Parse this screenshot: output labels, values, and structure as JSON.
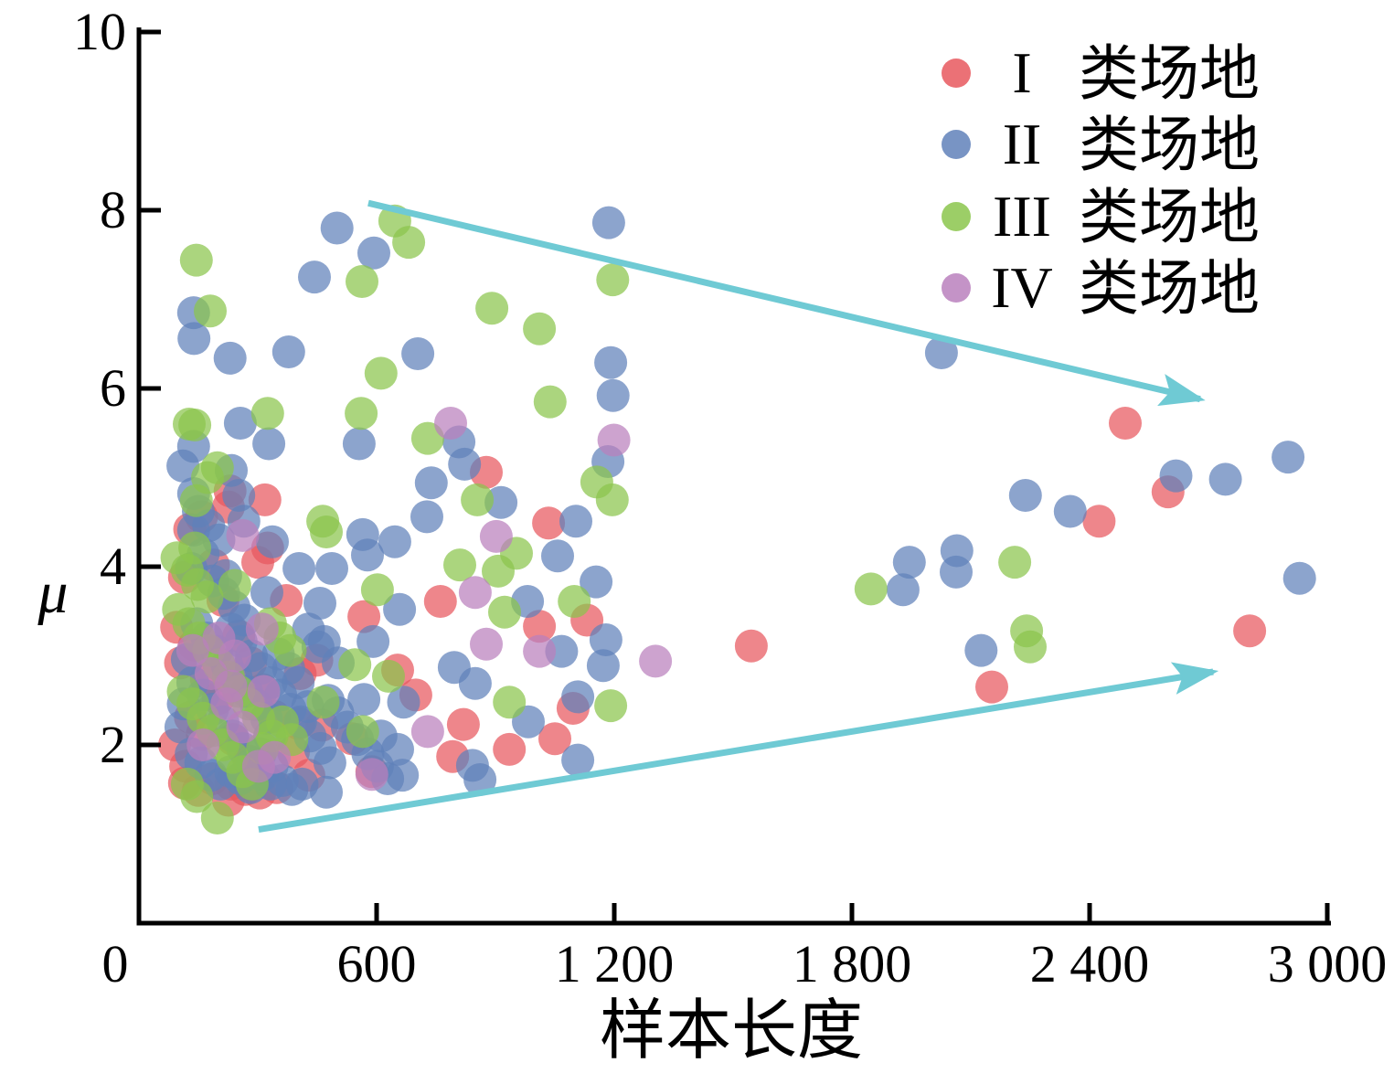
{
  "colors": {
    "red": "#e8585e",
    "blue": "#6081ba",
    "green": "#8bc54c",
    "pink": "#ba80bd",
    "arrow": "#6fcad4",
    "axis": "#000000"
  },
  "legend": {
    "items": [
      {
        "numeral": "I",
        "label": "类场地",
        "series": "series1"
      },
      {
        "numeral": "II",
        "label": "类场地",
        "series": "series2"
      },
      {
        "numeral": "III",
        "label": "类场地",
        "series": "series3"
      },
      {
        "numeral": "IV",
        "label": "类场地",
        "series": "series4"
      }
    ]
  },
  "chart_data": {
    "type": "scatter",
    "title": "",
    "xlabel": "样本长度",
    "ylabel": "μ",
    "xlim": [
      0,
      3000
    ],
    "ylim": [
      0,
      10
    ],
    "grid": false,
    "legend_position": "top-right",
    "x_tick_values": [
      0,
      600,
      1200,
      1800,
      2400,
      3000
    ],
    "x_tick_labels": [
      "0",
      "600",
      "1 200",
      "1 800",
      "2 400",
      "3 000"
    ],
    "y_tick_values": [
      2,
      4,
      6,
      8,
      10
    ],
    "y_tick_labels": [
      "2",
      "4",
      "6",
      "8",
      "10"
    ],
    "point_opacity": 0.72,
    "series": [
      {
        "id": "series1",
        "name": "I 类场地",
        "color_key": "red",
        "points": [
          [
            2490,
            5.61
          ],
          [
            2598,
            4.84
          ],
          [
            2424,
            4.51
          ],
          [
            2804,
            3.28
          ],
          [
            2153,
            2.65
          ],
          [
            1546,
            3.11
          ],
          [
            877,
            5.06
          ],
          [
            1034,
            4.49
          ],
          [
            761,
            3.61
          ],
          [
            1131,
            3.4
          ],
          [
            1011,
            3.33
          ],
          [
            1096,
            2.41
          ],
          [
            1050,
            2.07
          ],
          [
            935,
            1.95
          ],
          [
            819,
            2.23
          ],
          [
            792,
            1.87
          ],
          [
            653,
            2.84
          ],
          [
            449,
            2.95
          ],
          [
            407,
            2.8
          ],
          [
            403,
            2.24
          ],
          [
            538,
            2.07
          ],
          [
            429,
            1.66
          ],
          [
            699,
            2.56
          ],
          [
            588,
            1.7
          ],
          [
            372,
            3.62
          ],
          [
            568,
            3.44
          ],
          [
            318,
            4.75
          ],
          [
            300,
            4.05
          ],
          [
            325,
            4.21
          ],
          [
            230,
            4.85
          ],
          [
            226,
            4.67
          ],
          [
            115,
            3.88
          ],
          [
            115,
            1.57
          ],
          [
            226,
            1.38
          ],
          [
            95,
            3.32
          ],
          [
            140,
            3.12
          ],
          [
            105,
            2.92
          ],
          [
            170,
            2.74
          ],
          [
            200,
            2.52
          ],
          [
            130,
            2.31
          ],
          [
            160,
            2.12
          ],
          [
            90,
            2.0
          ],
          [
            118,
            1.76
          ],
          [
            185,
            1.62
          ],
          [
            232,
            1.56
          ],
          [
            268,
            1.5
          ],
          [
            305,
            1.46
          ],
          [
            348,
            1.52
          ],
          [
            150,
            1.49
          ],
          [
            128,
            4.42
          ],
          [
            158,
            4.56
          ],
          [
            188,
            4.02
          ],
          [
            212,
            3.62
          ],
          [
            252,
            3.22
          ],
          [
            282,
            2.92
          ],
          [
            312,
            2.62
          ],
          [
            342,
            2.32
          ],
          [
            390,
            1.92
          ],
          [
            462,
            2.22
          ],
          [
            238,
            2.06
          ],
          [
            278,
            1.82
          ]
        ]
      },
      {
        "id": "series2",
        "name": "II 类场地",
        "color_key": "blue",
        "points": [
          [
            2901,
            5.23
          ],
          [
            2618,
            5.02
          ],
          [
            2743,
            4.98
          ],
          [
            2238,
            4.8
          ],
          [
            2351,
            4.62
          ],
          [
            2930,
            3.87
          ],
          [
            2126,
            3.06
          ],
          [
            2026,
            6.4
          ],
          [
            1945,
            4.05
          ],
          [
            2065,
            4.18
          ],
          [
            2063,
            3.94
          ],
          [
            1929,
            3.74
          ],
          [
            1186,
            7.86
          ],
          [
            1191,
            6.29
          ],
          [
            1197,
            5.92
          ],
          [
            1184,
            5.18
          ],
          [
            1154,
            3.83
          ],
          [
            1172,
            2.89
          ],
          [
            1179,
            3.18
          ],
          [
            1103,
            4.51
          ],
          [
            1057,
            4.12
          ],
          [
            1108,
            2.54
          ],
          [
            1108,
            1.83
          ],
          [
            981,
            3.61
          ],
          [
            983,
            2.26
          ],
          [
            914,
            4.72
          ],
          [
            808,
            5.4
          ],
          [
            822,
            5.15
          ],
          [
            738,
            4.94
          ],
          [
            727,
            4.56
          ],
          [
            796,
            2.87
          ],
          [
            849,
            2.69
          ],
          [
            861,
            1.61
          ],
          [
            842,
            1.77
          ],
          [
            1067,
            3.05
          ],
          [
            500,
            7.8
          ],
          [
            443,
            7.25
          ],
          [
            593,
            7.52
          ],
          [
            138,
            6.85
          ],
          [
            139,
            6.56
          ],
          [
            230,
            6.34
          ],
          [
            378,
            6.41
          ],
          [
            704,
            6.39
          ],
          [
            256,
            5.61
          ],
          [
            328,
            5.38
          ],
          [
            138,
            5.35
          ],
          [
            556,
            5.38
          ],
          [
            646,
            4.28
          ],
          [
            577,
            4.13
          ],
          [
            565,
            4.36
          ],
          [
            658,
            3.52
          ],
          [
            487,
            3.98
          ],
          [
            404,
            3.98
          ],
          [
            457,
            3.59
          ],
          [
            111,
            5.13
          ],
          [
            233,
            5.08
          ],
          [
            252,
            4.8
          ],
          [
            138,
            4.82
          ],
          [
            138,
            4.41
          ],
          [
            265,
            4.51
          ],
          [
            337,
            4.28
          ],
          [
            323,
            3.71
          ],
          [
            219,
            3.9
          ],
          [
            591,
            3.16
          ],
          [
            468,
            3.16
          ],
          [
            503,
            2.92
          ],
          [
            568,
            2.51
          ],
          [
            426,
            2.43
          ],
          [
            330,
            2.1
          ],
          [
            611,
            2.1
          ],
          [
            653,
            1.95
          ],
          [
            668,
            2.48
          ],
          [
            665,
            1.66
          ],
          [
            473,
            1.47
          ],
          [
            150,
            4.62
          ],
          [
            176,
            4.46
          ],
          [
            202,
            4.3
          ],
          [
            162,
            4.14
          ],
          [
            132,
            3.98
          ],
          [
            186,
            3.84
          ],
          [
            214,
            3.7
          ],
          [
            240,
            3.55
          ],
          [
            266,
            3.4
          ],
          [
            146,
            3.36
          ],
          [
            172,
            3.2
          ],
          [
            196,
            3.05
          ],
          [
            222,
            2.9
          ],
          [
            246,
            2.75
          ],
          [
            272,
            2.6
          ],
          [
            296,
            2.45
          ],
          [
            322,
            2.3
          ],
          [
            122,
            2.96
          ],
          [
            136,
            2.7
          ],
          [
            112,
            2.46
          ],
          [
            162,
            2.56
          ],
          [
            186,
            2.4
          ],
          [
            212,
            2.26
          ],
          [
            236,
            2.1
          ],
          [
            262,
            1.96
          ],
          [
            286,
            1.8
          ],
          [
            312,
            1.66
          ],
          [
            336,
            1.76
          ],
          [
            362,
            1.6
          ],
          [
            386,
            1.5
          ],
          [
            412,
            1.56
          ],
          [
            132,
            1.9
          ],
          [
            106,
            2.2
          ],
          [
            156,
            1.8
          ],
          [
            182,
            1.66
          ],
          [
            206,
            1.56
          ],
          [
            232,
            1.7
          ],
          [
            256,
            1.62
          ],
          [
            282,
            1.52
          ],
          [
            306,
            1.9
          ],
          [
            332,
            1.56
          ],
          [
            232,
            3.3
          ],
          [
            258,
            3.16
          ],
          [
            284,
            3.0
          ],
          [
            308,
            2.86
          ],
          [
            334,
            2.7
          ],
          [
            358,
            2.56
          ],
          [
            382,
            2.4
          ],
          [
            408,
            2.26
          ],
          [
            432,
            2.1
          ],
          [
            458,
            1.96
          ],
          [
            482,
            1.8
          ],
          [
            352,
            3.02
          ],
          [
            378,
            2.86
          ],
          [
            402,
            2.7
          ],
          [
            428,
            3.3
          ],
          [
            452,
            3.1
          ],
          [
            478,
            2.5
          ],
          [
            502,
            2.36
          ],
          [
            526,
            2.2
          ],
          [
            552,
            2.06
          ],
          [
            578,
            1.9
          ],
          [
            602,
            1.76
          ],
          [
            628,
            1.62
          ]
        ]
      },
      {
        "id": "series3",
        "name": "III 类场地",
        "color_key": "green",
        "points": [
          [
            145,
            7.44
          ],
          [
            180,
            6.87
          ],
          [
            646,
            7.88
          ],
          [
            681,
            7.64
          ],
          [
            563,
            7.2
          ],
          [
            891,
            6.9
          ],
          [
            1011,
            6.67
          ],
          [
            611,
            6.17
          ],
          [
            561,
            5.72
          ],
          [
            1038,
            5.85
          ],
          [
            1196,
            7.22
          ],
          [
            127,
            5.6
          ],
          [
            141,
            5.59
          ],
          [
            325,
            5.72
          ],
          [
            1848,
            3.75
          ],
          [
            2211,
            4.05
          ],
          [
            2241,
            3.28
          ],
          [
            2250,
            3.1
          ],
          [
            729,
            5.44
          ],
          [
            854,
            4.75
          ],
          [
            953,
            4.15
          ],
          [
            907,
            3.95
          ],
          [
            810,
            4.02
          ],
          [
            923,
            3.49
          ],
          [
            1099,
            3.61
          ],
          [
            1156,
            4.95
          ],
          [
            1195,
            4.75
          ],
          [
            1191,
            2.44
          ],
          [
            935,
            2.48
          ],
          [
            545,
            2.9
          ],
          [
            630,
            2.77
          ],
          [
            465,
            2.48
          ],
          [
            565,
            2.15
          ],
          [
            198,
            1.18
          ],
          [
            602,
            3.74
          ],
          [
            464,
            4.51
          ],
          [
            473,
            4.39
          ],
          [
            242,
            3.79
          ],
          [
            198,
            5.11
          ],
          [
            173,
            5.0
          ],
          [
            145,
            4.74
          ],
          [
            141,
            4.21
          ],
          [
            100,
            3.52
          ],
          [
            126,
            3.36
          ],
          [
            152,
            3.2
          ],
          [
            176,
            3.06
          ],
          [
            202,
            2.9
          ],
          [
            226,
            2.76
          ],
          [
            252,
            2.6
          ],
          [
            276,
            2.46
          ],
          [
            302,
            2.3
          ],
          [
            112,
            2.6
          ],
          [
            136,
            2.46
          ],
          [
            162,
            2.3
          ],
          [
            186,
            2.16
          ],
          [
            212,
            2.0
          ],
          [
            236,
            1.86
          ],
          [
            262,
            1.7
          ],
          [
            286,
            1.56
          ],
          [
            96,
            4.1
          ],
          [
            122,
            3.96
          ],
          [
            148,
            3.8
          ],
          [
            172,
            3.66
          ],
          [
            312,
            1.96
          ],
          [
            336,
            2.1
          ],
          [
            362,
            2.26
          ],
          [
            386,
            2.06
          ],
          [
            122,
            1.56
          ],
          [
            146,
            1.42
          ],
          [
            332,
            3.36
          ],
          [
            356,
            3.2
          ],
          [
            382,
            3.06
          ]
        ]
      },
      {
        "id": "series4",
        "name": "IV 类场地",
        "color_key": "pink",
        "points": [
          [
            787,
            5.61
          ],
          [
            1199,
            5.42
          ],
          [
            902,
            4.34
          ],
          [
            849,
            3.71
          ],
          [
            877,
            3.13
          ],
          [
            1304,
            2.94
          ],
          [
            729,
            2.15
          ],
          [
            311,
            3.3
          ],
          [
            315,
            2.6
          ],
          [
            588,
            1.67
          ],
          [
            1011,
            3.05
          ],
          [
            182,
            2.8
          ],
          [
            222,
            2.46
          ],
          [
            262,
            2.2
          ],
          [
            202,
            3.2
          ],
          [
            242,
            3.0
          ],
          [
            162,
            2.0
          ],
          [
            302,
            1.76
          ],
          [
            342,
            1.86
          ],
          [
            136,
            3.06
          ],
          [
            262,
            4.35
          ],
          [
            232,
            2.66
          ]
        ]
      }
    ],
    "annotations": {
      "arrows": [
        {
          "name": "upper-trend-arrow",
          "from": [
            579,
            8.08
          ],
          "to": [
            2679,
            5.88
          ]
        },
        {
          "name": "lower-trend-arrow",
          "from": [
            302,
            1.05
          ],
          "to": [
            2712,
            2.82
          ]
        }
      ]
    }
  }
}
